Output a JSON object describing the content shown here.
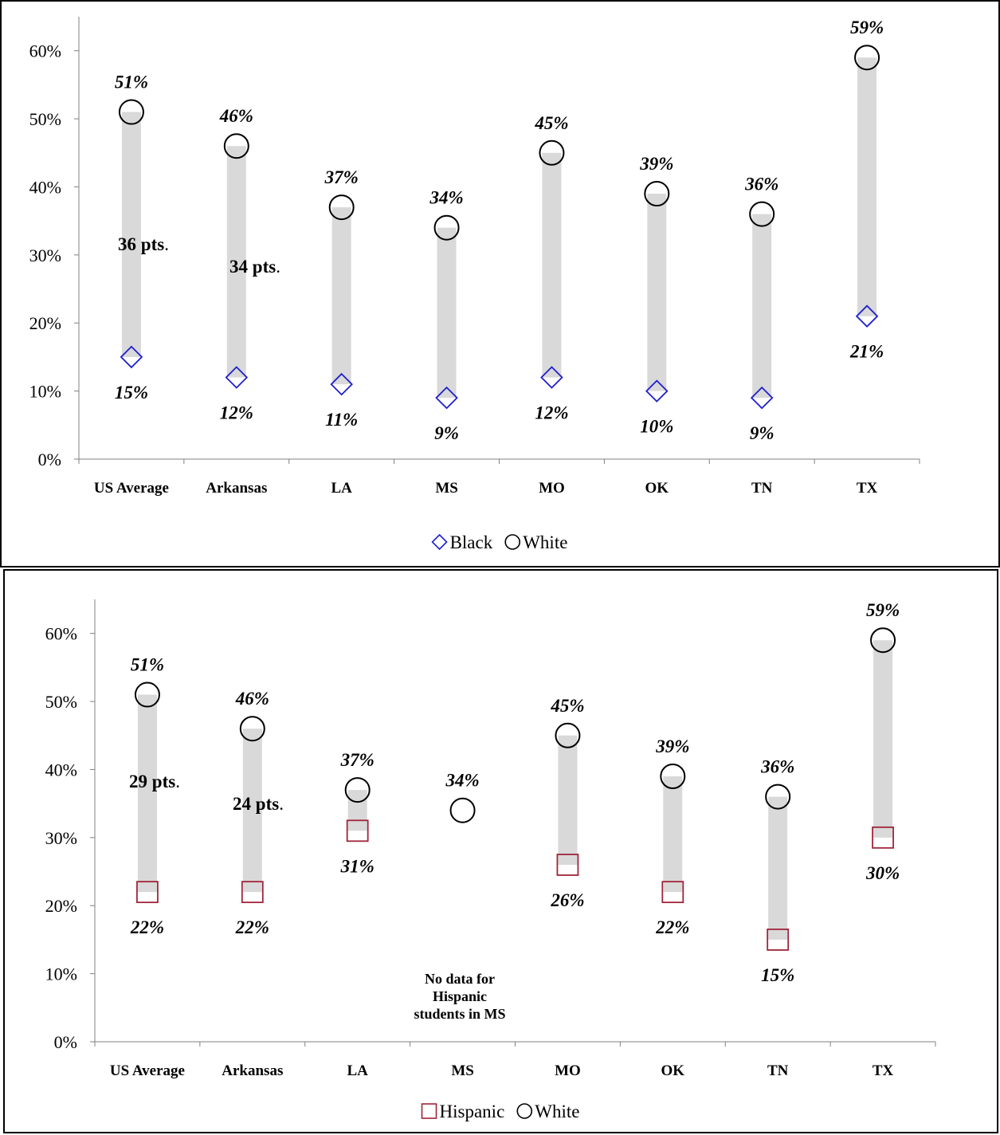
{
  "chart_data": [
    {
      "type": "scatter",
      "categories": [
        "US Average",
        "Arkansas",
        "LA",
        "MS",
        "MO",
        "OK",
        "TN",
        "TX"
      ],
      "ylim": [
        0,
        0.65
      ],
      "yticks": [
        "0%",
        "10%",
        "20%",
        "30%",
        "40%",
        "50%",
        "60%"
      ],
      "series": [
        {
          "name": "Black",
          "values": [
            15,
            12,
            11,
            9,
            12,
            10,
            9,
            21
          ],
          "labels": [
            "15%",
            "12%",
            "11%",
            "9%",
            "12%",
            "10%",
            "9%",
            "21%"
          ],
          "marker": "diamond",
          "color": "#1f1fcf"
        },
        {
          "name": "White",
          "values": [
            51,
            46,
            37,
            34,
            45,
            39,
            36,
            59
          ],
          "labels": [
            "51%",
            "46%",
            "37%",
            "34%",
            "45%",
            "39%",
            "36%",
            "59%"
          ],
          "marker": "circle",
          "color": "#000000"
        }
      ],
      "gap_labels": [
        {
          "category": "US Average",
          "text": "36 pts",
          "suffix": "."
        },
        {
          "category": "Arkansas",
          "text": "34 pts",
          "suffix": "."
        }
      ],
      "range_bar_color": "#d9d9d9",
      "legend": "bottom"
    },
    {
      "type": "scatter",
      "categories": [
        "US Average",
        "Arkansas",
        "LA",
        "MS",
        "MO",
        "OK",
        "TN",
        "TX"
      ],
      "ylim": [
        0,
        0.65
      ],
      "yticks": [
        "0%",
        "10%",
        "20%",
        "30%",
        "40%",
        "50%",
        "60%"
      ],
      "series": [
        {
          "name": "Hispanic",
          "values": [
            22,
            22,
            31,
            null,
            26,
            22,
            15,
            30
          ],
          "labels": [
            "22%",
            "22%",
            "31%",
            "",
            "26%",
            "22%",
            "15%",
            "30%"
          ],
          "marker": "square",
          "color": "#a0243a"
        },
        {
          "name": "White",
          "values": [
            51,
            46,
            37,
            34,
            45,
            39,
            36,
            59
          ],
          "labels": [
            "51%",
            "46%",
            "37%",
            "34%",
            "45%",
            "39%",
            "36%",
            "59%"
          ],
          "marker": "circle",
          "color": "#000000"
        }
      ],
      "gap_labels": [
        {
          "category": "US Average",
          "text": "29 pts",
          "suffix": "."
        },
        {
          "category": "Arkansas",
          "text": "24 pts",
          "suffix": "."
        }
      ],
      "annotation": [
        "No data for",
        "Hispanic",
        "students in MS"
      ],
      "range_bar_color": "#d9d9d9",
      "legend": "bottom"
    }
  ]
}
